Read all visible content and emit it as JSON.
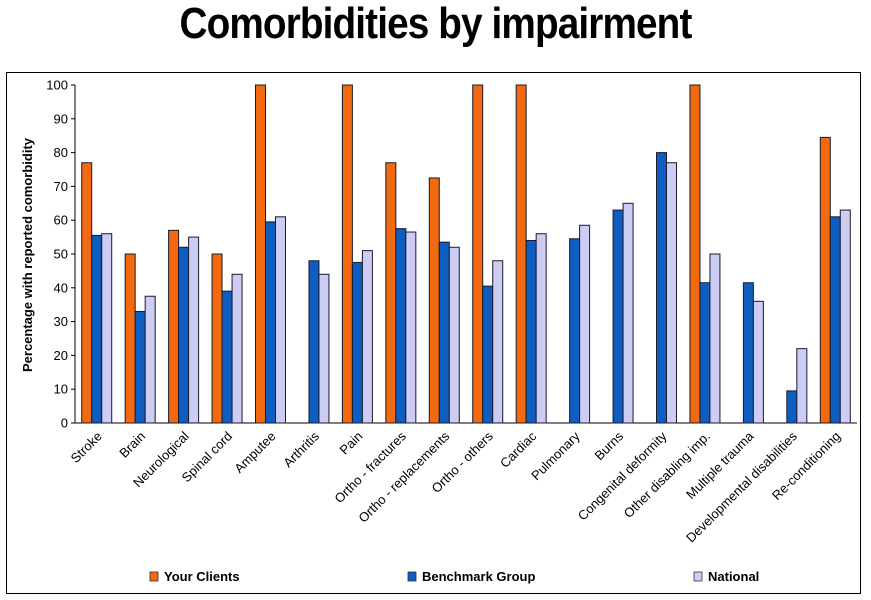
{
  "chart_data": {
    "type": "bar",
    "title": "Comorbidities by impairment",
    "xlabel": "",
    "ylabel": "Percentage with reported comorbidity",
    "ylim": [
      0,
      100
    ],
    "yticks": [
      0,
      10,
      20,
      30,
      40,
      50,
      60,
      70,
      80,
      90,
      100
    ],
    "grid": false,
    "legend_position": "bottom",
    "categories": [
      "Stroke",
      "Brain",
      "Neurological",
      "Spinal cord",
      "Amputee",
      "Arthritis",
      "Pain",
      "Ortho - fractures",
      "Ortho - replacements",
      "Ortho - others",
      "Cardiac",
      "Pulmonary",
      "Burns",
      "Congenital deformity",
      "Other disabling imp.",
      "Multiple trauma",
      "Developmental disabilities",
      "Re-conditioning"
    ],
    "series": [
      {
        "name": "Your Clients",
        "color": "#F26A10",
        "values": [
          77,
          50,
          57,
          50,
          100,
          null,
          100,
          77,
          72.5,
          100,
          100,
          null,
          null,
          null,
          100,
          null,
          null,
          84.5
        ]
      },
      {
        "name": "Benchmark Group",
        "color": "#0E5EC2",
        "values": [
          55.5,
          33,
          52,
          39,
          59.5,
          48,
          47.5,
          57.5,
          53.5,
          40.5,
          54,
          54.5,
          63,
          80,
          41.5,
          41.5,
          9.5,
          61
        ]
      },
      {
        "name": "National",
        "color": "#CCCCF4",
        "values": [
          56,
          37.5,
          55,
          44,
          61,
          44,
          51,
          56.5,
          52,
          48,
          56,
          58.5,
          65,
          77,
          50,
          36,
          22,
          63
        ]
      }
    ]
  }
}
